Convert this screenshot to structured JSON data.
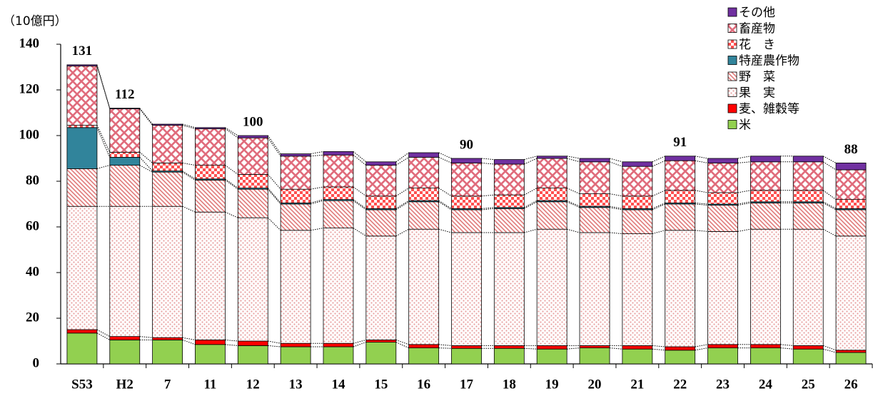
{
  "chart_data": {
    "type": "stacked_bar",
    "y_label": "（10億円）",
    "categories": [
      "S53",
      "H2",
      "7",
      "11",
      "12",
      "13",
      "14",
      "15",
      "16",
      "17",
      "18",
      "19",
      "20",
      "21",
      "22",
      "23",
      "24",
      "25",
      "26"
    ],
    "series": [
      {
        "name": "米",
        "color": "#92d050",
        "fill": "solid",
        "values": [
          13.5,
          10.5,
          10.5,
          8.5,
          8,
          7.5,
          7.5,
          9.5,
          7,
          6.8,
          6.8,
          6.5,
          7,
          6.5,
          6,
          7,
          7,
          6.5,
          5
        ]
      },
      {
        "name": "麦、雑穀等",
        "color": "#ff0000",
        "fill": "solid",
        "values": [
          1.5,
          1.5,
          1,
          2,
          2,
          1.5,
          1.5,
          1,
          1.5,
          1.2,
          1.2,
          1.5,
          1,
          1.5,
          1.5,
          1.5,
          1.5,
          1.5,
          1
        ]
      },
      {
        "name": "果　実",
        "color": "#e8a0a0",
        "fill": "dots",
        "values": [
          54,
          57,
          57.5,
          56,
          54,
          49.5,
          50.5,
          45.5,
          50.5,
          49.5,
          49.5,
          51,
          49.5,
          49,
          51,
          49.5,
          50.5,
          51,
          50
        ]
      },
      {
        "name": "野　菜",
        "color": "#e07a7a",
        "fill": "stripes",
        "values": [
          16.5,
          18,
          15,
          14,
          12.5,
          11.5,
          12,
          11.5,
          12,
          10,
          10.5,
          12,
          11,
          10.5,
          11.5,
          11.5,
          11.5,
          11.5,
          11.5
        ]
      },
      {
        "name": "特産農作物",
        "color": "#31849b",
        "fill": "solid",
        "values": [
          18,
          3.5,
          0.5,
          0.5,
          0.5,
          0.5,
          0.5,
          0.5,
          0.5,
          0.5,
          0.5,
          0.5,
          0.5,
          0.5,
          0.5,
          0.5,
          0.5,
          0.5,
          0.5
        ]
      },
      {
        "name": "花　き",
        "color": "#ff5050",
        "fill": "check",
        "values": [
          1,
          2.2,
          3.5,
          6,
          6,
          6,
          5.5,
          5.5,
          5.5,
          5.5,
          5.5,
          5.5,
          5.5,
          5.5,
          5.5,
          5,
          5,
          5,
          4
        ]
      },
      {
        "name": "畜産物",
        "color": "#e06c7c",
        "fill": "cross",
        "values": [
          26,
          19,
          16.5,
          16,
          16,
          14.5,
          14,
          13.5,
          13.5,
          14.5,
          13.5,
          13,
          14,
          13,
          13,
          13,
          12.5,
          12.5,
          13
        ]
      },
      {
        "name": "その他",
        "color": "#7030a0",
        "fill": "solid",
        "values": [
          0.5,
          0.3,
          0.5,
          0.5,
          1,
          1,
          1.5,
          1.5,
          2,
          2,
          2,
          1,
          1.5,
          2,
          2,
          2,
          2.5,
          2.5,
          3
        ]
      }
    ],
    "totals": [
      131,
      112,
      null,
      null,
      100,
      null,
      null,
      null,
      null,
      90,
      null,
      null,
      null,
      null,
      91,
      null,
      null,
      null,
      88
    ],
    "ylim": [
      0,
      140
    ],
    "yticks": [
      0,
      20,
      40,
      60,
      80,
      100,
      120,
      140
    ],
    "legend": "top-right"
  }
}
